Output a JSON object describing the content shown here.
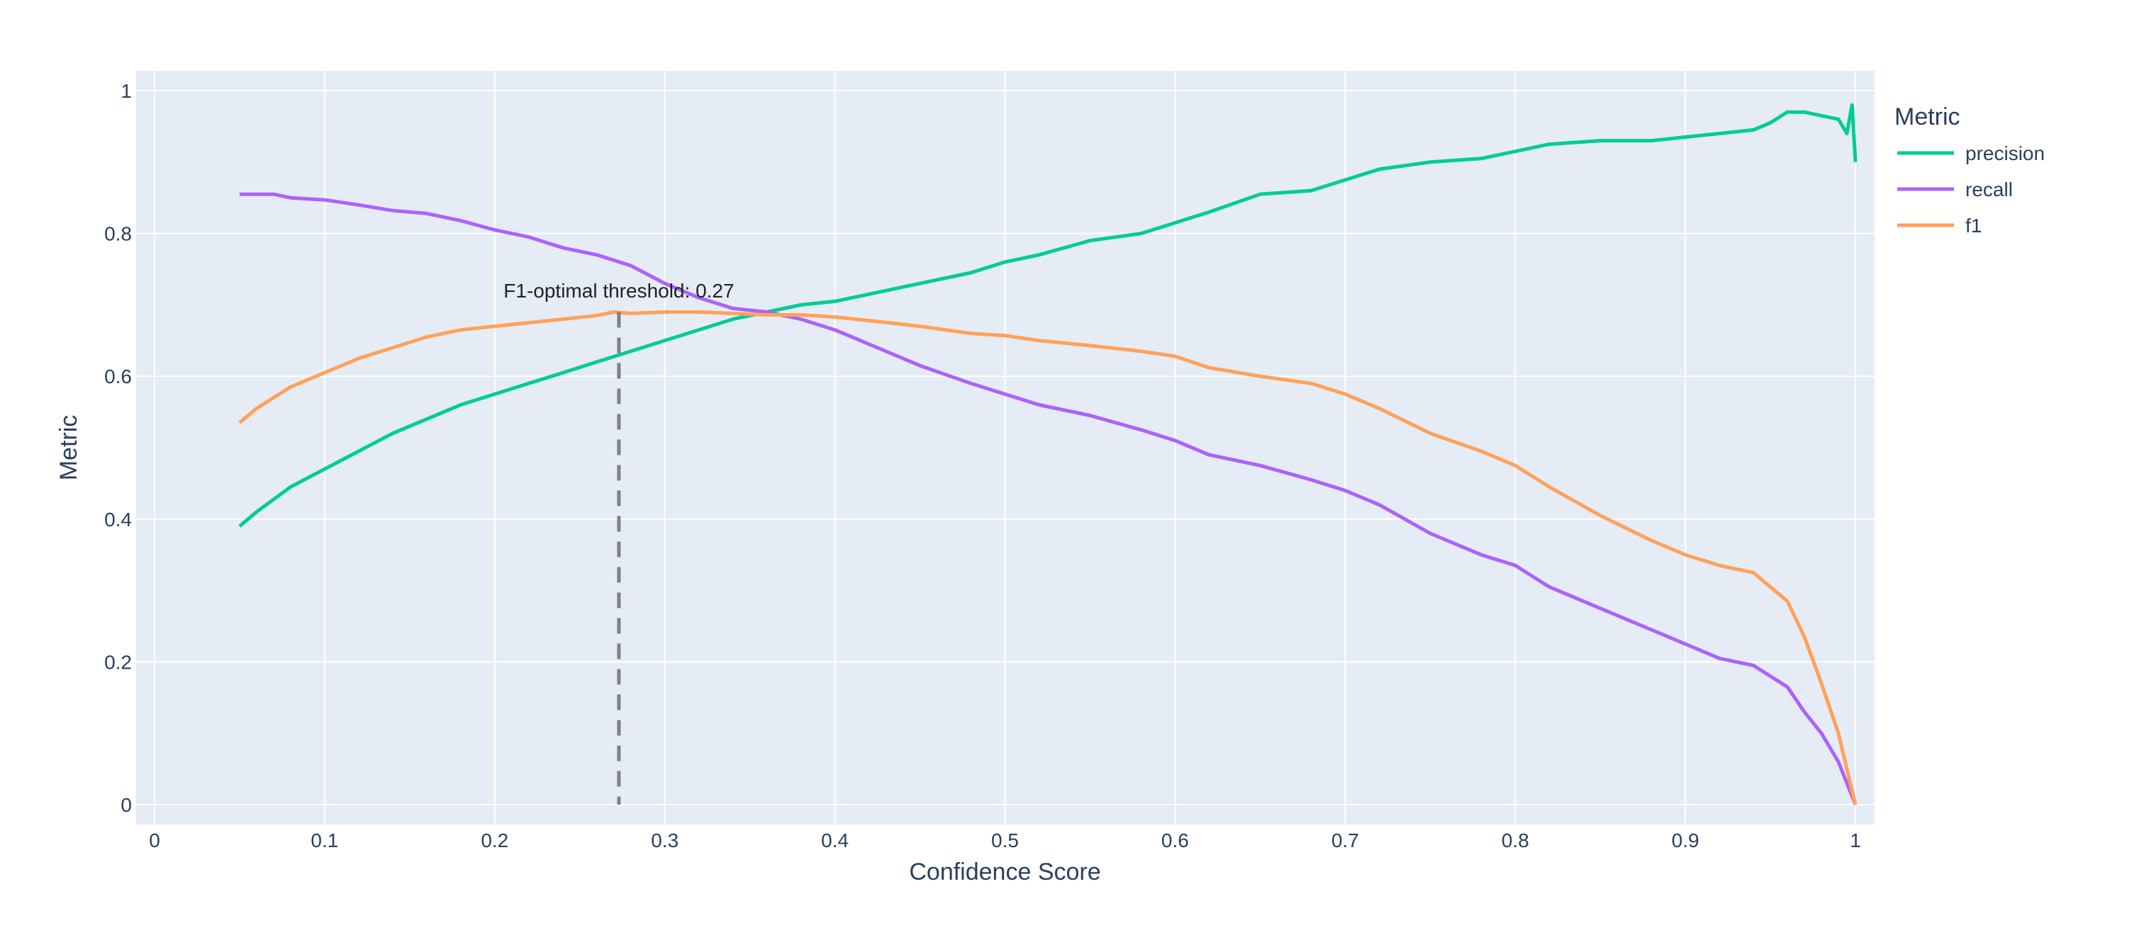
{
  "chart_data": {
    "type": "line",
    "xlabel": "Confidence Score",
    "ylabel": "Metric",
    "xlim": [
      0,
      1
    ],
    "ylim": [
      0,
      1
    ],
    "x_ticks": [
      0,
      0.1,
      0.2,
      0.3,
      0.4,
      0.5,
      0.6,
      0.7,
      0.8,
      0.9,
      1
    ],
    "x_tick_labels": [
      "0",
      "0.1",
      "0.2",
      "0.3",
      "0.4",
      "0.5",
      "0.6",
      "0.7",
      "0.8",
      "0.9",
      "1"
    ],
    "y_ticks": [
      0,
      0.2,
      0.4,
      0.6,
      0.8,
      1
    ],
    "y_tick_labels": [
      "0",
      "0.2",
      "0.4",
      "0.6",
      "0.8",
      "1"
    ],
    "grid": true,
    "legend": {
      "title": "Metric",
      "position": "right"
    },
    "background_color": "#e5ecf6",
    "series": [
      {
        "name": "precision",
        "color": "#00cc96",
        "x": [
          0.05,
          0.06,
          0.08,
          0.1,
          0.12,
          0.14,
          0.16,
          0.18,
          0.2,
          0.22,
          0.24,
          0.26,
          0.28,
          0.3,
          0.32,
          0.34,
          0.36,
          0.38,
          0.4,
          0.42,
          0.45,
          0.48,
          0.5,
          0.52,
          0.55,
          0.58,
          0.6,
          0.62,
          0.65,
          0.68,
          0.7,
          0.72,
          0.75,
          0.78,
          0.8,
          0.82,
          0.85,
          0.88,
          0.9,
          0.92,
          0.94,
          0.95,
          0.96,
          0.97,
          0.98,
          0.99,
          0.995,
          0.998,
          1.0
        ],
        "y": [
          0.39,
          0.41,
          0.445,
          0.47,
          0.495,
          0.52,
          0.54,
          0.56,
          0.575,
          0.59,
          0.605,
          0.62,
          0.635,
          0.65,
          0.665,
          0.68,
          0.69,
          0.7,
          0.705,
          0.715,
          0.73,
          0.745,
          0.76,
          0.77,
          0.79,
          0.8,
          0.815,
          0.83,
          0.855,
          0.86,
          0.875,
          0.89,
          0.9,
          0.905,
          0.915,
          0.925,
          0.93,
          0.93,
          0.935,
          0.94,
          0.945,
          0.955,
          0.97,
          0.97,
          0.965,
          0.96,
          0.94,
          0.98,
          0.9
        ]
      },
      {
        "name": "recall",
        "color": "#ab63fa",
        "x": [
          0.05,
          0.07,
          0.08,
          0.1,
          0.12,
          0.14,
          0.16,
          0.18,
          0.2,
          0.22,
          0.24,
          0.26,
          0.28,
          0.3,
          0.32,
          0.34,
          0.36,
          0.38,
          0.4,
          0.42,
          0.45,
          0.48,
          0.5,
          0.52,
          0.55,
          0.58,
          0.6,
          0.62,
          0.65,
          0.68,
          0.7,
          0.72,
          0.75,
          0.78,
          0.8,
          0.82,
          0.85,
          0.88,
          0.9,
          0.92,
          0.94,
          0.95,
          0.96,
          0.97,
          0.98,
          0.99,
          1.0
        ],
        "y": [
          0.855,
          0.855,
          0.85,
          0.847,
          0.84,
          0.832,
          0.828,
          0.818,
          0.805,
          0.795,
          0.78,
          0.77,
          0.755,
          0.73,
          0.71,
          0.695,
          0.69,
          0.68,
          0.665,
          0.645,
          0.615,
          0.59,
          0.575,
          0.56,
          0.545,
          0.525,
          0.51,
          0.49,
          0.475,
          0.455,
          0.44,
          0.42,
          0.38,
          0.35,
          0.335,
          0.305,
          0.275,
          0.245,
          0.225,
          0.205,
          0.195,
          0.18,
          0.165,
          0.13,
          0.1,
          0.06,
          0.0
        ]
      },
      {
        "name": "f1",
        "color": "#ffa15a",
        "x": [
          0.05,
          0.06,
          0.08,
          0.1,
          0.12,
          0.14,
          0.16,
          0.18,
          0.2,
          0.22,
          0.24,
          0.26,
          0.27,
          0.28,
          0.3,
          0.32,
          0.34,
          0.36,
          0.38,
          0.4,
          0.42,
          0.45,
          0.48,
          0.5,
          0.52,
          0.55,
          0.58,
          0.6,
          0.62,
          0.65,
          0.68,
          0.7,
          0.72,
          0.75,
          0.78,
          0.8,
          0.82,
          0.85,
          0.88,
          0.9,
          0.92,
          0.94,
          0.95,
          0.96,
          0.97,
          0.98,
          0.99,
          0.995,
          1.0
        ],
        "y": [
          0.535,
          0.555,
          0.585,
          0.605,
          0.625,
          0.64,
          0.655,
          0.665,
          0.67,
          0.675,
          0.68,
          0.685,
          0.69,
          0.688,
          0.69,
          0.69,
          0.688,
          0.686,
          0.686,
          0.683,
          0.678,
          0.67,
          0.66,
          0.657,
          0.65,
          0.643,
          0.635,
          0.628,
          0.612,
          0.6,
          0.59,
          0.575,
          0.555,
          0.52,
          0.495,
          0.475,
          0.445,
          0.405,
          0.37,
          0.35,
          0.335,
          0.325,
          0.305,
          0.285,
          0.235,
          0.17,
          0.1,
          0.05,
          0.0
        ]
      }
    ],
    "annotations": [
      {
        "text": "F1-optimal threshold: 0.27",
        "x": 0.273,
        "y": 0.72,
        "line_x": 0.273,
        "line_y_top": 0.69,
        "line_style": "dashed",
        "line_color": "#808080"
      }
    ]
  }
}
